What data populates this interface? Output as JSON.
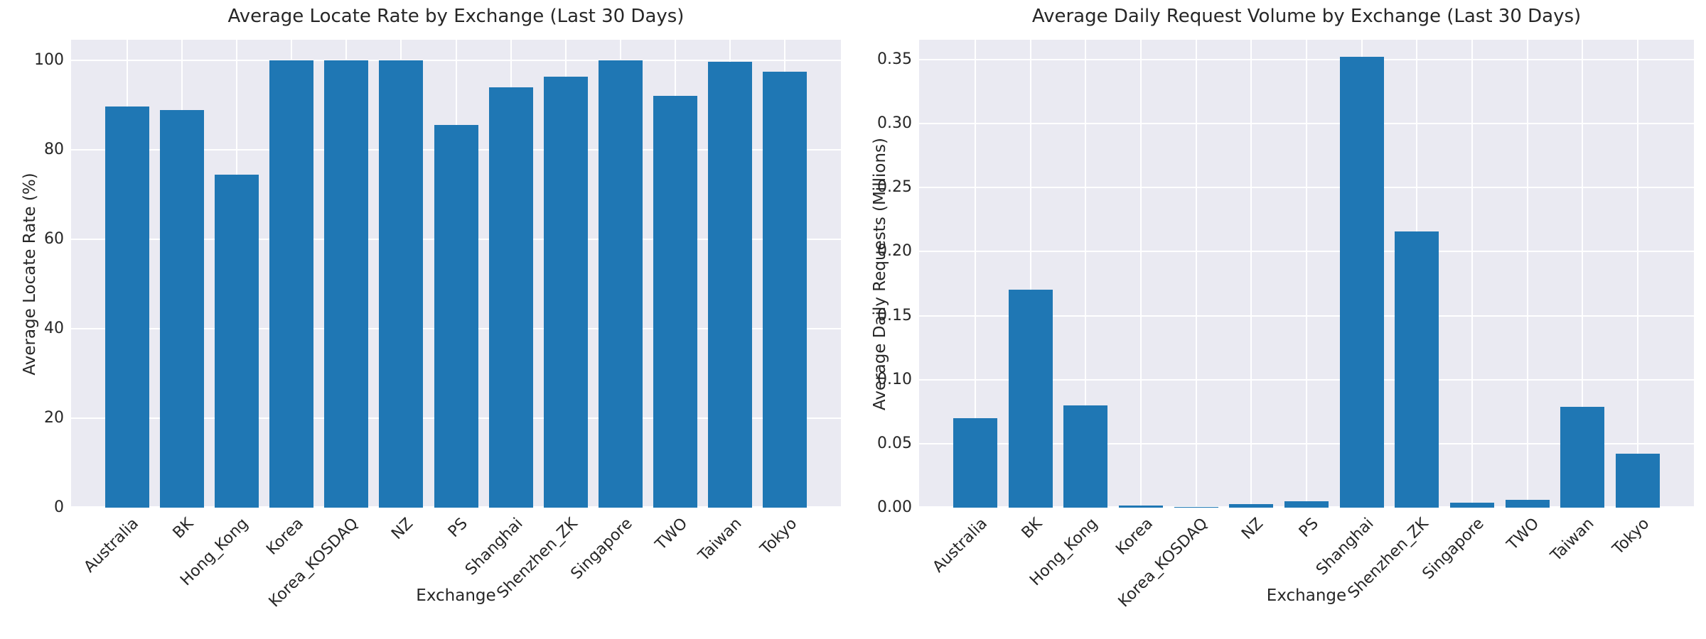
{
  "figure": {
    "background": "#ffffff"
  },
  "style": {
    "bar_color": "#1f77b4",
    "plot_background": "#eaeaf2",
    "grid_color": "#ffffff",
    "text_color": "#262626"
  },
  "chart_data": [
    {
      "type": "bar",
      "title": "Average Locate Rate by Exchange (Last 30 Days)",
      "xlabel": "Exchange",
      "ylabel": "Average Locate Rate (%)",
      "categories": [
        "Australia",
        "BK",
        "Hong_Kong",
        "Korea",
        "Korea_KOSDAQ",
        "NZ",
        "PS",
        "Shanghai",
        "Shenzhen_ZK",
        "Singapore",
        "TWO",
        "Taiwan",
        "Tokyo"
      ],
      "values": [
        89.7,
        88.9,
        74.4,
        100.0,
        100.0,
        100.0,
        85.6,
        94.0,
        96.4,
        100.0,
        92.1,
        99.7,
        97.5
      ],
      "ylim": [
        0,
        104.6
      ],
      "yticks": [
        0,
        20,
        40,
        60,
        80,
        100
      ],
      "ytick_labels": [
        "0",
        "20",
        "40",
        "60",
        "80",
        "100"
      ],
      "grid": true,
      "legend": "none"
    },
    {
      "type": "bar",
      "title": "Average Daily Request Volume by Exchange (Last 30 Days)",
      "xlabel": "Exchange",
      "ylabel": "Average Daily Requests (Millions)",
      "categories": [
        "Australia",
        "BK",
        "Hong_Kong",
        "Korea",
        "Korea_KOSDAQ",
        "NZ",
        "PS",
        "Shanghai",
        "Shenzhen_ZK",
        "Singapore",
        "TWO",
        "Taiwan",
        "Tokyo"
      ],
      "values": [
        0.07,
        0.17,
        0.08,
        0.0017,
        0.0006,
        0.0028,
        0.005,
        0.352,
        0.216,
        0.004,
        0.006,
        0.079,
        0.042
      ],
      "ylim": [
        0,
        0.3655
      ],
      "yticks": [
        0,
        0.05,
        0.1,
        0.15,
        0.2,
        0.25,
        0.3,
        0.35
      ],
      "ytick_labels": [
        "0.00",
        "0.05",
        "0.10",
        "0.15",
        "0.20",
        "0.25",
        "0.30",
        "0.35"
      ],
      "grid": true,
      "legend": "none"
    }
  ]
}
